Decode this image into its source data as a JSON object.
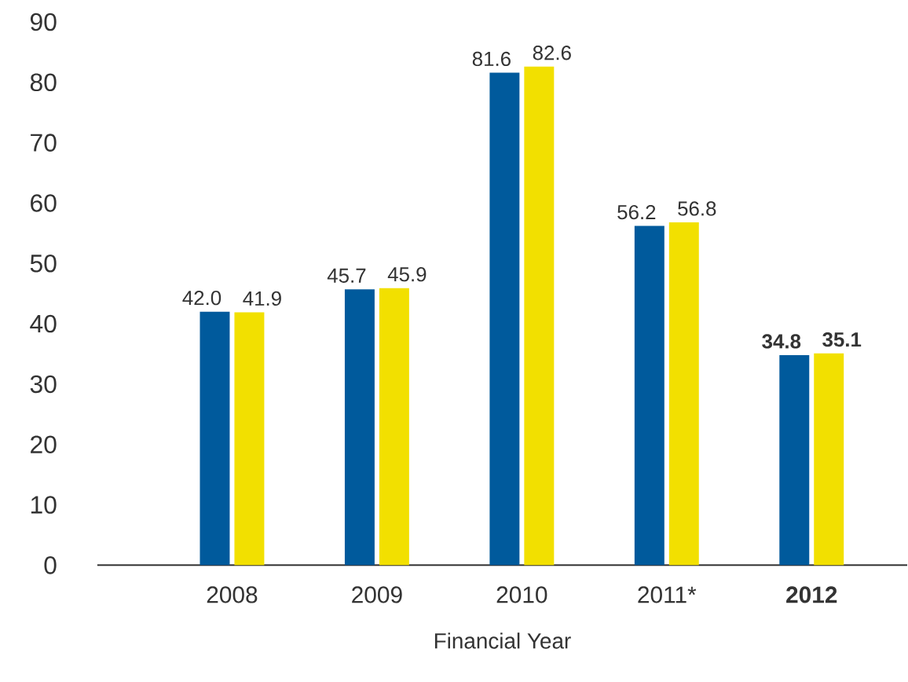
{
  "chart_data": {
    "type": "bar",
    "xlabel": "Financial Year",
    "categories": [
      "2008",
      "2009",
      "2010",
      "2011*",
      "**2012**"
    ],
    "series": [
      {
        "color": "#005a9c",
        "values": [
          42.0,
          45.7,
          81.6,
          56.2,
          34.8
        ],
        "value_labels": [
          "42.0",
          "45.7",
          "81.6",
          "56.2",
          "**34.8**"
        ]
      },
      {
        "color": "#f2e000",
        "values": [
          41.9,
          45.9,
          82.6,
          56.8,
          35.1
        ],
        "value_labels": [
          "41.9",
          "45.9",
          "82.6",
          "56.8",
          "**35.1**"
        ]
      }
    ],
    "ylim": [
      0,
      90
    ],
    "yticks": [
      0,
      10,
      20,
      30,
      40,
      50,
      60,
      70,
      80,
      90
    ]
  }
}
